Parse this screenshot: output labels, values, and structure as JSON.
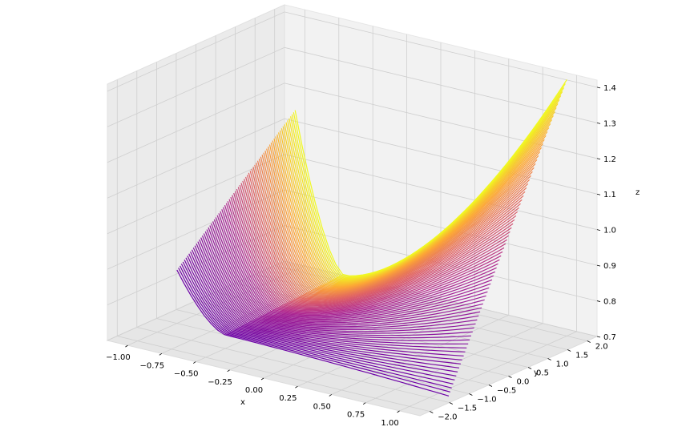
{
  "chart_data": {
    "type": "line",
    "subtype": "3d-contour-lines",
    "title": "",
    "xlabel": "x",
    "ylabel": "y",
    "zlabel": "z",
    "xlim": [
      -1.15,
      1.15
    ],
    "ylim": [
      -2.25,
      2.25
    ],
    "zlim": [
      0.7,
      1.42
    ],
    "x_ticks": [
      -1.0,
      -0.75,
      -0.5,
      -0.25,
      0.0,
      0.25,
      0.5,
      0.75,
      1.0
    ],
    "x_tick_labels": [
      "−1.00",
      "−0.75",
      "−0.50",
      "−0.25",
      "0.00",
      "0.25",
      "0.50",
      "0.75",
      "1.00"
    ],
    "y_ticks": [
      -2.0,
      -1.5,
      -1.0,
      -0.5,
      0.0,
      0.5,
      1.0,
      1.5,
      2.0
    ],
    "y_tick_labels": [
      "−2.0",
      "−1.5",
      "−1.0",
      "−0.5",
      "0.0",
      "0.5",
      "1.0",
      "1.5",
      "2.0"
    ],
    "z_ticks": [
      0.7,
      0.8,
      0.9,
      1.0,
      1.1,
      1.2,
      1.3,
      1.4
    ],
    "z_tick_labels": [
      "0.7",
      "0.8",
      "0.9",
      "1.0",
      "1.1",
      "1.2",
      "1.3",
      "1.4"
    ],
    "surface": {
      "x_range": [
        -1.0,
        1.0
      ],
      "y_range": [
        -1.0,
        2.0
      ],
      "corner_z": {
        "x_min_y_max": 1.15,
        "x_max_y_max": 1.42,
        "x_min_y_min": 0.85,
        "x_max_y_min": 0.68
      },
      "line_count": 80
    },
    "colormap": [
      "#0d0887",
      "#6a00a8",
      "#b12a90",
      "#e16462",
      "#fca636",
      "#f0f921"
    ],
    "grid": true
  }
}
